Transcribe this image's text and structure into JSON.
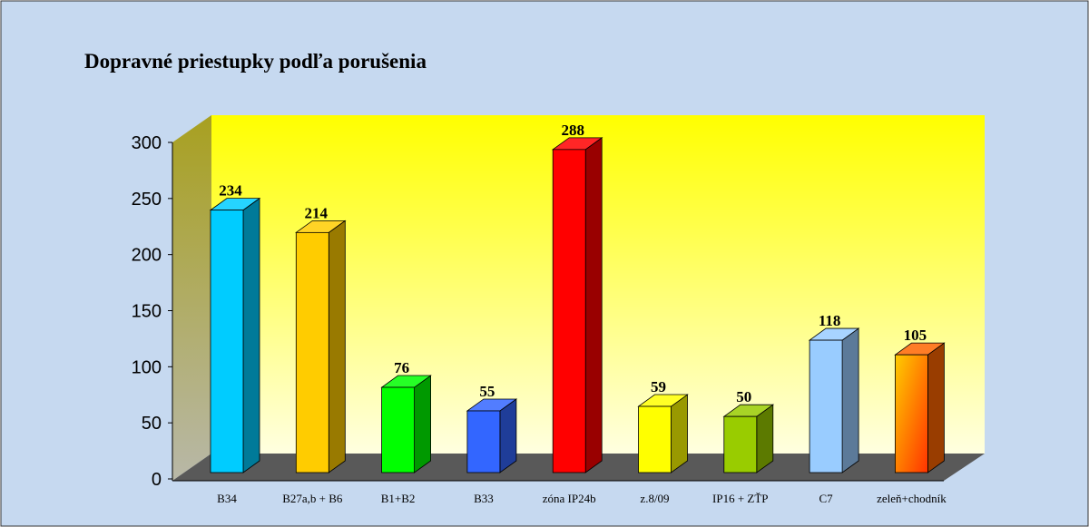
{
  "chart_data": {
    "type": "bar3d",
    "title": "Dopravné priestupky podľa porušenia",
    "categories": [
      "B34",
      "B27a,b + B6",
      "B1+B2",
      "B33",
      "zóna IP24b",
      "z.8/09",
      "IP16 + ZŤP",
      "C7",
      "zeleň+chodník"
    ],
    "values": [
      234,
      214,
      76,
      55,
      288,
      59,
      50,
      118,
      105
    ],
    "colors": [
      "#00ccff",
      "#ffcc00",
      "#00ff00",
      "#3366ff",
      "#ff0000",
      "#ffff00",
      "#99cc00",
      "#99ccff",
      "#ff6600"
    ],
    "ylim": [
      0,
      300
    ],
    "yticks": [
      0,
      50,
      100,
      150,
      200,
      250,
      300
    ],
    "grid": false
  }
}
